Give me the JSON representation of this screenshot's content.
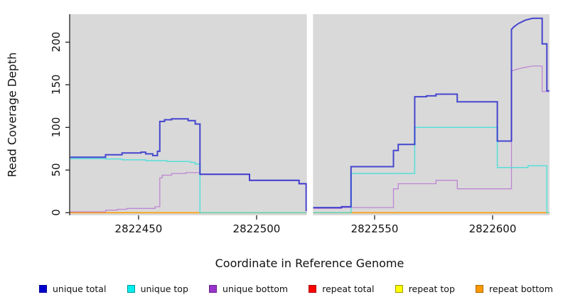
{
  "axes": {
    "x": {
      "label": "Coordinate in Reference Genome",
      "ticks": [
        {
          "value": 2822450,
          "label": "2822450"
        },
        {
          "value": 2822500,
          "label": "2822500"
        },
        {
          "value": 2822550,
          "label": "2822550"
        },
        {
          "value": 2822600,
          "label": "2822600"
        }
      ]
    },
    "y": {
      "label": "Read Coverage Depth",
      "ticks": [
        {
          "value": 0,
          "label": "0"
        },
        {
          "value": 50,
          "label": "50"
        },
        {
          "value": 100,
          "label": "100"
        },
        {
          "value": 150,
          "label": "150"
        },
        {
          "value": 200,
          "label": "200"
        }
      ]
    }
  },
  "panel": {
    "background": "#d9d9d9",
    "axis_color": "#222222",
    "gap_x_range": [
      2822521.3,
      2822523.9
    ]
  },
  "legend": {
    "items": [
      {
        "label": "unique total",
        "fill": "#0000cc",
        "border": "#000099"
      },
      {
        "label": "unique top",
        "fill": "#00eeee",
        "border": "#009999"
      },
      {
        "label": "unique bottom",
        "fill": "#9933cc",
        "border": "#662288"
      },
      {
        "label": "repeat total",
        "fill": "#ff0000",
        "border": "#aa0000"
      },
      {
        "label": "repeat top",
        "fill": "#ffff00",
        "border": "#999900"
      },
      {
        "label": "repeat bottom",
        "fill": "#ff9900",
        "border": "#aa6600"
      }
    ]
  },
  "chart_data": {
    "type": "line",
    "title": "",
    "xlabel": "Coordinate in Reference Genome",
    "ylabel": "Read Coverage Depth",
    "xlim": [
      2822420.8,
      2822624.1
    ],
    "ylim": [
      -3.1,
      232.8
    ],
    "grid": false,
    "legend_position": "bottom",
    "note_gap_region": [
      2822521.3,
      2822523.9
    ],
    "series": [
      {
        "name": "repeat total",
        "color": "#ff1a40",
        "opacity": 0.6,
        "width": 1.5,
        "segments": [
          [
            [
              2822421,
              0
            ],
            [
              2822521,
              0
            ]
          ],
          [
            [
              2822524,
              0
            ],
            [
              2822624,
              0
            ]
          ]
        ]
      },
      {
        "name": "repeat top",
        "color": "#ffee00",
        "opacity": 0.8,
        "width": 1.5,
        "segments": [
          [
            [
              2822421,
              0
            ],
            [
              2822521,
              0
            ]
          ],
          [
            [
              2822524,
              0
            ],
            [
              2822624,
              0
            ]
          ]
        ]
      },
      {
        "name": "repeat bottom",
        "color": "#ff9400",
        "opacity": 0.85,
        "width": 1.6,
        "segments": [
          [
            [
              2822421,
              0
            ],
            [
              2822521,
              0
            ]
          ],
          [
            [
              2822524,
              0
            ],
            [
              2822624,
              0
            ]
          ]
        ]
      },
      {
        "name": "unique bottom",
        "color": "#b66ad2",
        "opacity": 0.75,
        "width": 1.3,
        "segments": [
          [
            [
              2822421,
              1
            ],
            [
              2822436,
              1
            ],
            [
              2822436,
              3
            ],
            [
              2822441,
              3
            ],
            [
              2822441,
              4
            ],
            [
              2822445,
              4
            ],
            [
              2822445,
              5
            ],
            [
              2822457,
              5
            ],
            [
              2822457,
              7
            ],
            [
              2822459,
              7
            ],
            [
              2822459,
              41
            ],
            [
              2822460,
              41
            ],
            [
              2822460,
              44
            ],
            [
              2822464,
              44
            ],
            [
              2822464,
              46
            ],
            [
              2822470,
              46
            ],
            [
              2822470,
              47
            ],
            [
              2822476,
              47
            ],
            [
              2822476,
              45
            ],
            [
              2822497,
              45
            ],
            [
              2822497,
              38
            ],
            [
              2822518,
              38
            ],
            [
              2822518,
              34
            ],
            [
              2822521,
              34
            ],
            [
              2822521,
              1
            ]
          ],
          [
            [
              2822524,
              5
            ],
            [
              2822536,
              5
            ],
            [
              2822536,
              6
            ],
            [
              2822558,
              6
            ],
            [
              2822558,
              28
            ],
            [
              2822560,
              28
            ],
            [
              2822560,
              34
            ],
            [
              2822576,
              34
            ],
            [
              2822576,
              38
            ],
            [
              2822585,
              38
            ],
            [
              2822585,
              28
            ],
            [
              2822608,
              28
            ],
            [
              2822608,
              166
            ],
            [
              2822610,
              168
            ],
            [
              2822613,
              170
            ],
            [
              2822617,
              172
            ],
            [
              2822621,
              172
            ],
            [
              2822621,
              142
            ],
            [
              2822624,
              142
            ]
          ]
        ]
      },
      {
        "name": "unique top",
        "color": "#35e0da",
        "opacity": 0.8,
        "width": 1.5,
        "segments": [
          [
            [
              2822421,
              63.5
            ],
            [
              2822436,
              63.5
            ],
            [
              2822436,
              63
            ],
            [
              2822443,
              63
            ],
            [
              2822443,
              62
            ],
            [
              2822453,
              62
            ],
            [
              2822453,
              61
            ],
            [
              2822462,
              61
            ],
            [
              2822462,
              60
            ],
            [
              2822472,
              60
            ],
            [
              2822472,
              59
            ],
            [
              2822474,
              59
            ],
            [
              2822474,
              57
            ],
            [
              2822476,
              57
            ],
            [
              2822476,
              0
            ],
            [
              2822521,
              0
            ]
          ],
          [
            [
              2822524,
              0
            ],
            [
              2822540,
              0
            ],
            [
              2822540,
              46
            ],
            [
              2822567,
              46
            ],
            [
              2822567,
              100
            ],
            [
              2822602,
              100
            ],
            [
              2822602,
              53
            ],
            [
              2822615,
              53
            ],
            [
              2822615,
              55
            ],
            [
              2822623,
              55
            ],
            [
              2822623,
              0
            ],
            [
              2822624,
              0
            ]
          ]
        ]
      },
      {
        "name": "unique total",
        "color": "#2020cc",
        "opacity": 0.8,
        "width": 2,
        "segments": [
          [
            [
              2822421,
              65
            ],
            [
              2822436,
              65
            ],
            [
              2822436,
              68
            ],
            [
              2822443,
              68
            ],
            [
              2822443,
              70
            ],
            [
              2822451,
              70
            ],
            [
              2822451,
              71
            ],
            [
              2822453,
              71
            ],
            [
              2822453,
              69
            ],
            [
              2822456,
              69
            ],
            [
              2822456,
              67
            ],
            [
              2822458,
              67
            ],
            [
              2822458,
              72
            ],
            [
              2822459,
              72
            ],
            [
              2822459,
              107
            ],
            [
              2822461,
              107
            ],
            [
              2822461,
              109
            ],
            [
              2822464,
              109
            ],
            [
              2822464,
              110
            ],
            [
              2822471,
              110
            ],
            [
              2822471,
              108
            ],
            [
              2822474,
              108
            ],
            [
              2822474,
              104
            ],
            [
              2822476,
              104
            ],
            [
              2822476,
              45
            ],
            [
              2822497,
              45
            ],
            [
              2822497,
              38
            ],
            [
              2822518,
              38
            ],
            [
              2822518,
              34
            ],
            [
              2822521,
              34
            ],
            [
              2822521,
              2
            ]
          ],
          [
            [
              2822524,
              6
            ],
            [
              2822536,
              6
            ],
            [
              2822536,
              7
            ],
            [
              2822540,
              7
            ],
            [
              2822540,
              54
            ],
            [
              2822558,
              54
            ],
            [
              2822558,
              73
            ],
            [
              2822560,
              73
            ],
            [
              2822560,
              80
            ],
            [
              2822567,
              80
            ],
            [
              2822567,
              136
            ],
            [
              2822572,
              136
            ],
            [
              2822572,
              137
            ],
            [
              2822576,
              137
            ],
            [
              2822576,
              139
            ],
            [
              2822585,
              139
            ],
            [
              2822585,
              130
            ],
            [
              2822602,
              130
            ],
            [
              2822602,
              84
            ],
            [
              2822608,
              84
            ],
            [
              2822608,
              215
            ],
            [
              2822609,
              218
            ],
            [
              2822611,
              222
            ],
            [
              2822614,
              226
            ],
            [
              2822617,
              228
            ],
            [
              2822621,
              228
            ],
            [
              2822621,
              198
            ],
            [
              2822623,
              198
            ],
            [
              2822623,
              143
            ],
            [
              2822624,
              143
            ]
          ]
        ]
      }
    ]
  }
}
